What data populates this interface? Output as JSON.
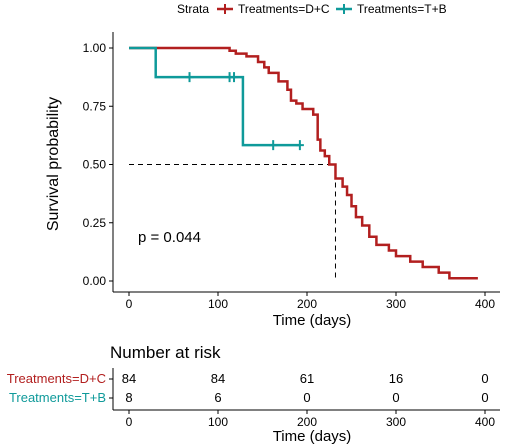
{
  "legend": {
    "title": "Strata",
    "items": [
      {
        "label": "Treatments=D+C",
        "color": "#b21f1f"
      },
      {
        "label": "Treatments=T+B",
        "color": "#0f9a9a"
      }
    ]
  },
  "chart_data": {
    "type": "line",
    "subtype": "kaplan-meier",
    "title": "",
    "xlabel": "Time (days)",
    "ylabel": "Survival probability",
    "xlim": [
      0,
      400
    ],
    "ylim": [
      0,
      1
    ],
    "x_ticks": [
      "0",
      "100",
      "200",
      "300",
      "400"
    ],
    "y_ticks": [
      "0.00",
      "0.25",
      "0.50",
      "0.75",
      "1.00"
    ],
    "grid": false,
    "legend_position": "top",
    "annotation": "p = 0.044",
    "median_line": {
      "time": 232,
      "survival": 0.5
    },
    "series": [
      {
        "name": "Treatments=D+C",
        "color": "#b21f1f",
        "steps": [
          [
            0,
            1.0
          ],
          [
            113,
            0.988
          ],
          [
            120,
            0.976
          ],
          [
            132,
            0.964
          ],
          [
            145,
            0.94
          ],
          [
            152,
            0.917
          ],
          [
            157,
            0.893
          ],
          [
            168,
            0.857
          ],
          [
            178,
            0.821
          ],
          [
            182,
            0.774
          ],
          [
            188,
            0.762
          ],
          [
            195,
            0.738
          ],
          [
            207,
            0.714
          ],
          [
            212,
            0.607
          ],
          [
            215,
            0.56
          ],
          [
            220,
            0.536
          ],
          [
            225,
            0.5
          ],
          [
            232,
            0.44
          ],
          [
            240,
            0.405
          ],
          [
            245,
            0.369
          ],
          [
            250,
            0.321
          ],
          [
            255,
            0.274
          ],
          [
            262,
            0.238
          ],
          [
            270,
            0.19
          ],
          [
            278,
            0.155
          ],
          [
            292,
            0.131
          ],
          [
            300,
            0.107
          ],
          [
            316,
            0.083
          ],
          [
            330,
            0.06
          ],
          [
            348,
            0.036
          ],
          [
            360,
            0.012
          ],
          [
            392,
            0.012
          ]
        ],
        "censored": []
      },
      {
        "name": "Treatments=T+B",
        "color": "#0f9a9a",
        "steps": [
          [
            0,
            1.0
          ],
          [
            30,
            0.875
          ],
          [
            128,
            0.583
          ],
          [
            192,
            0.583
          ]
        ],
        "censored": [
          [
            68,
            0.875
          ],
          [
            113,
            0.875
          ],
          [
            118,
            0.875
          ],
          [
            162,
            0.583
          ],
          [
            192,
            0.583
          ]
        ]
      }
    ]
  },
  "risk_table": {
    "title": "Number at risk",
    "xlabel": "Time (days)",
    "x_ticks": [
      "0",
      "100",
      "200",
      "300",
      "400"
    ],
    "rows": [
      {
        "label": "Treatments=D+C",
        "color": "#b21f1f",
        "values": [
          "84",
          "84",
          "61",
          "16",
          "0"
        ]
      },
      {
        "label": "Treatments=T+B",
        "color": "#0f9a9a",
        "values": [
          "8",
          "6",
          "0",
          "0",
          "0"
        ]
      }
    ]
  }
}
